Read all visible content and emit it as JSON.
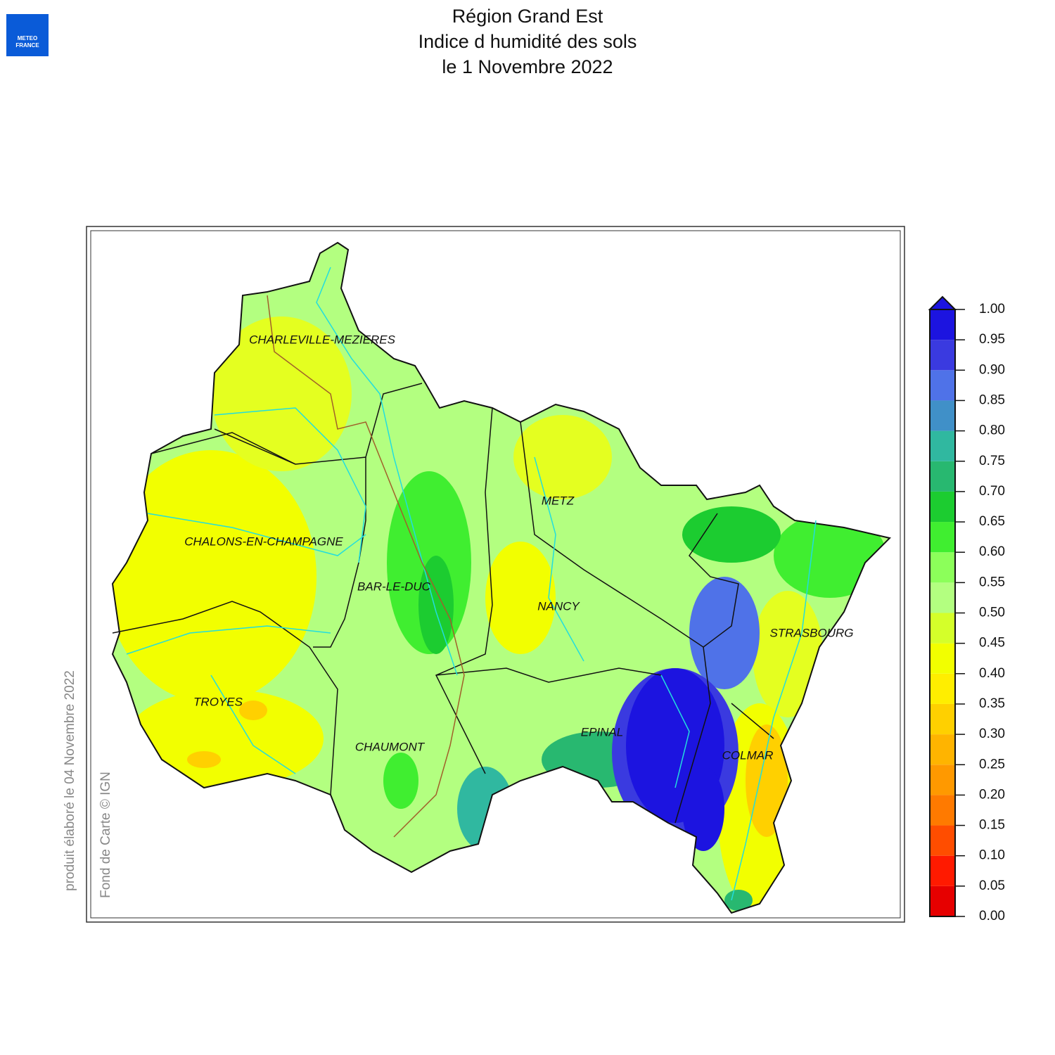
{
  "header": {
    "title_lines": [
      "Région Grand Est",
      "Indice d humidité des sols",
      "le 1 Novembre 2022"
    ]
  },
  "logo": {
    "lines": [
      "METEO",
      "FRANCE"
    ]
  },
  "cities": [
    "CHARLEVILLE-MEZIERES",
    "METZ",
    "CHALONS-EN-CHAMPAGNE",
    "BAR-LE-DUC",
    "NANCY",
    "STRASBOURG",
    "TROYES",
    "EPINAL",
    "CHAUMONT",
    "COLMAR"
  ],
  "credits": {
    "produced": "produit élaboré le 04 Novembre 2022",
    "basemap": "Fond de Carte © IGN"
  },
  "legend": {
    "ticks": [
      {
        "value": 0,
        "label": "0.00"
      },
      {
        "value": 0.05,
        "label": "0.05"
      },
      {
        "value": 0.1,
        "label": "0.10"
      },
      {
        "value": 0.15,
        "label": "0.15"
      },
      {
        "value": 0.2,
        "label": "0.20"
      },
      {
        "value": 0.25,
        "label": "0.25"
      },
      {
        "value": 0.3,
        "label": "0.30"
      },
      {
        "value": 0.35,
        "label": "0.35"
      },
      {
        "value": 0.4,
        "label": "0.40"
      },
      {
        "value": 0.45,
        "label": "0.45"
      },
      {
        "value": 0.5,
        "label": "0.50"
      },
      {
        "value": 0.55,
        "label": "0.55"
      },
      {
        "value": 0.6,
        "label": "0.60"
      },
      {
        "value": 0.65,
        "label": "0.65"
      },
      {
        "value": 0.7,
        "label": "0.70"
      },
      {
        "value": 0.75,
        "label": "0.75"
      },
      {
        "value": 0.8,
        "label": "0.80"
      },
      {
        "value": 0.85,
        "label": "0.85"
      },
      {
        "value": 0.9,
        "label": "0.90"
      },
      {
        "value": 0.95,
        "label": "0.95"
      },
      {
        "value": 1,
        "label": "1.00"
      }
    ],
    "colors": [
      "#e60000",
      "#ff1a00",
      "#ff4d00",
      "#ff7a00",
      "#ff9900",
      "#ffb400",
      "#ffd000",
      "#ffee00",
      "#f2ff00",
      "#d4ff2a",
      "#b3ff80",
      "#8cff5a",
      "#40ee30",
      "#1ccc30",
      "#28b870",
      "#30b8a0",
      "#4090c8",
      "#4f72e8",
      "#3a3ae0",
      "#1c14e0"
    ]
  }
}
